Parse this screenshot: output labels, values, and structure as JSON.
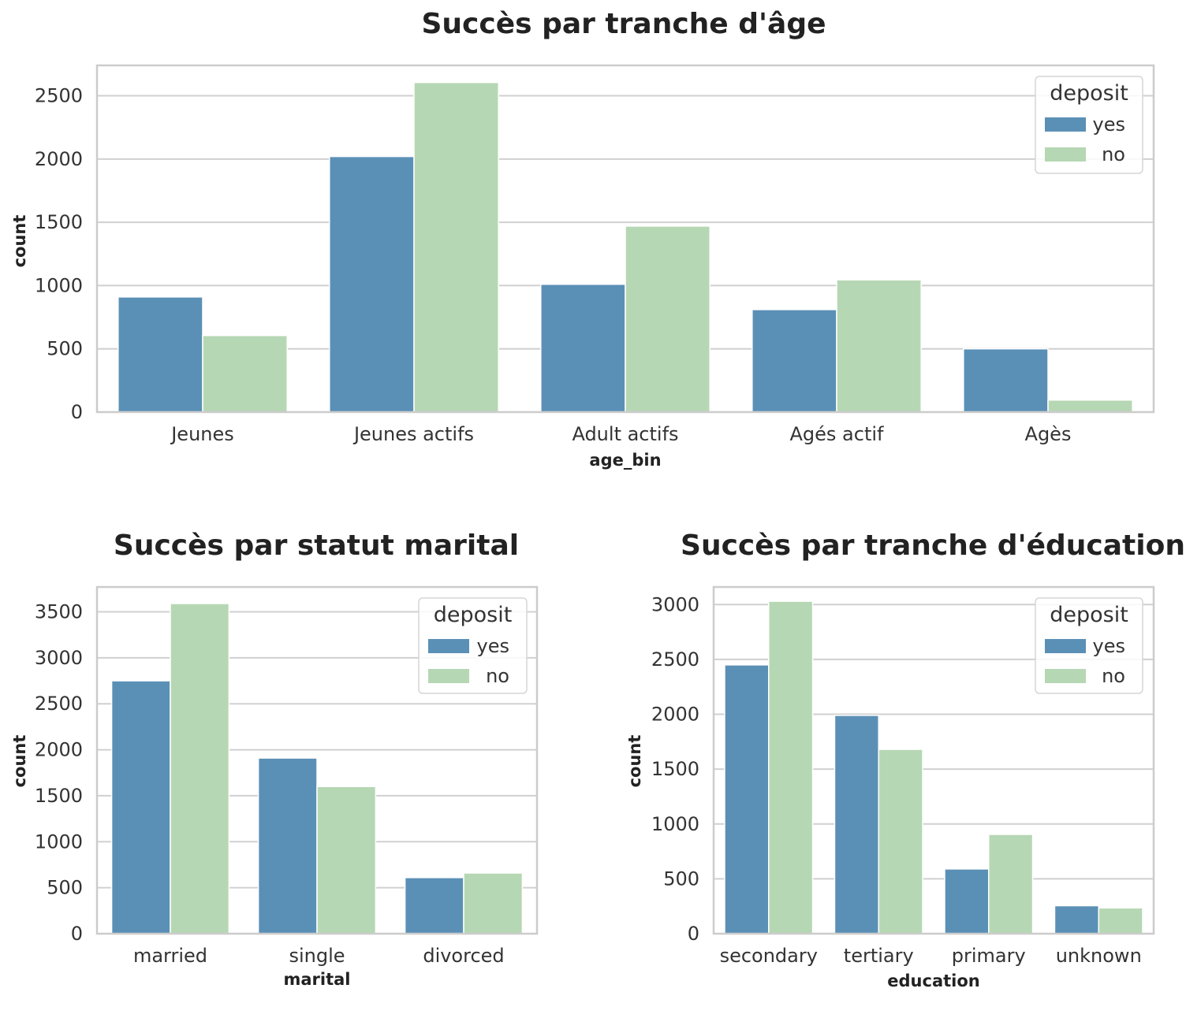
{
  "colors": {
    "yes": "#5b90b6",
    "no": "#b6d7b3",
    "grid": "#d0d0d0",
    "frame": "#cccccc"
  },
  "chart_data": [
    {
      "type": "bar",
      "title": "Succès par tranche d'âge",
      "xlabel": "age_bin",
      "ylabel": "count",
      "categories": [
        "Jeunes",
        "Jeunes actifs",
        "Adult actifs",
        "Agés actif",
        "Agès"
      ],
      "series": [
        {
          "name": "yes",
          "values": [
            910,
            2020,
            1010,
            810,
            500
          ]
        },
        {
          "name": "no",
          "values": [
            605,
            2605,
            1470,
            1045,
            95
          ]
        }
      ],
      "yticks": [
        0,
        500,
        1000,
        1500,
        2000,
        2500
      ],
      "ylim": [
        0,
        2740
      ],
      "grid": true,
      "legend": {
        "title": "deposit",
        "position": "upper right"
      }
    },
    {
      "type": "bar",
      "title": "Succès par statut marital",
      "xlabel": "marital",
      "ylabel": "count",
      "categories": [
        "married",
        "single",
        "divorced"
      ],
      "series": [
        {
          "name": "yes",
          "values": [
            2750,
            1910,
            610
          ]
        },
        {
          "name": "no",
          "values": [
            3590,
            1600,
            660
          ]
        }
      ],
      "yticks": [
        0,
        500,
        1000,
        1500,
        2000,
        2500,
        3000,
        3500
      ],
      "ylim": [
        0,
        3770
      ],
      "grid": true,
      "legend": {
        "title": "deposit",
        "position": "upper right"
      }
    },
    {
      "type": "bar",
      "title": "Succès par tranche d'éducation",
      "xlabel": "education",
      "ylabel": "count",
      "categories": [
        "secondary",
        "tertiary",
        "primary",
        "unknown"
      ],
      "series": [
        {
          "name": "yes",
          "values": [
            2450,
            1990,
            590,
            255
          ]
        },
        {
          "name": "no",
          "values": [
            3030,
            1680,
            905,
            235
          ]
        }
      ],
      "yticks": [
        0,
        500,
        1000,
        1500,
        2000,
        2500,
        3000
      ],
      "ylim": [
        0,
        3160
      ],
      "grid": true,
      "legend": {
        "title": "deposit",
        "position": "upper right"
      }
    }
  ]
}
